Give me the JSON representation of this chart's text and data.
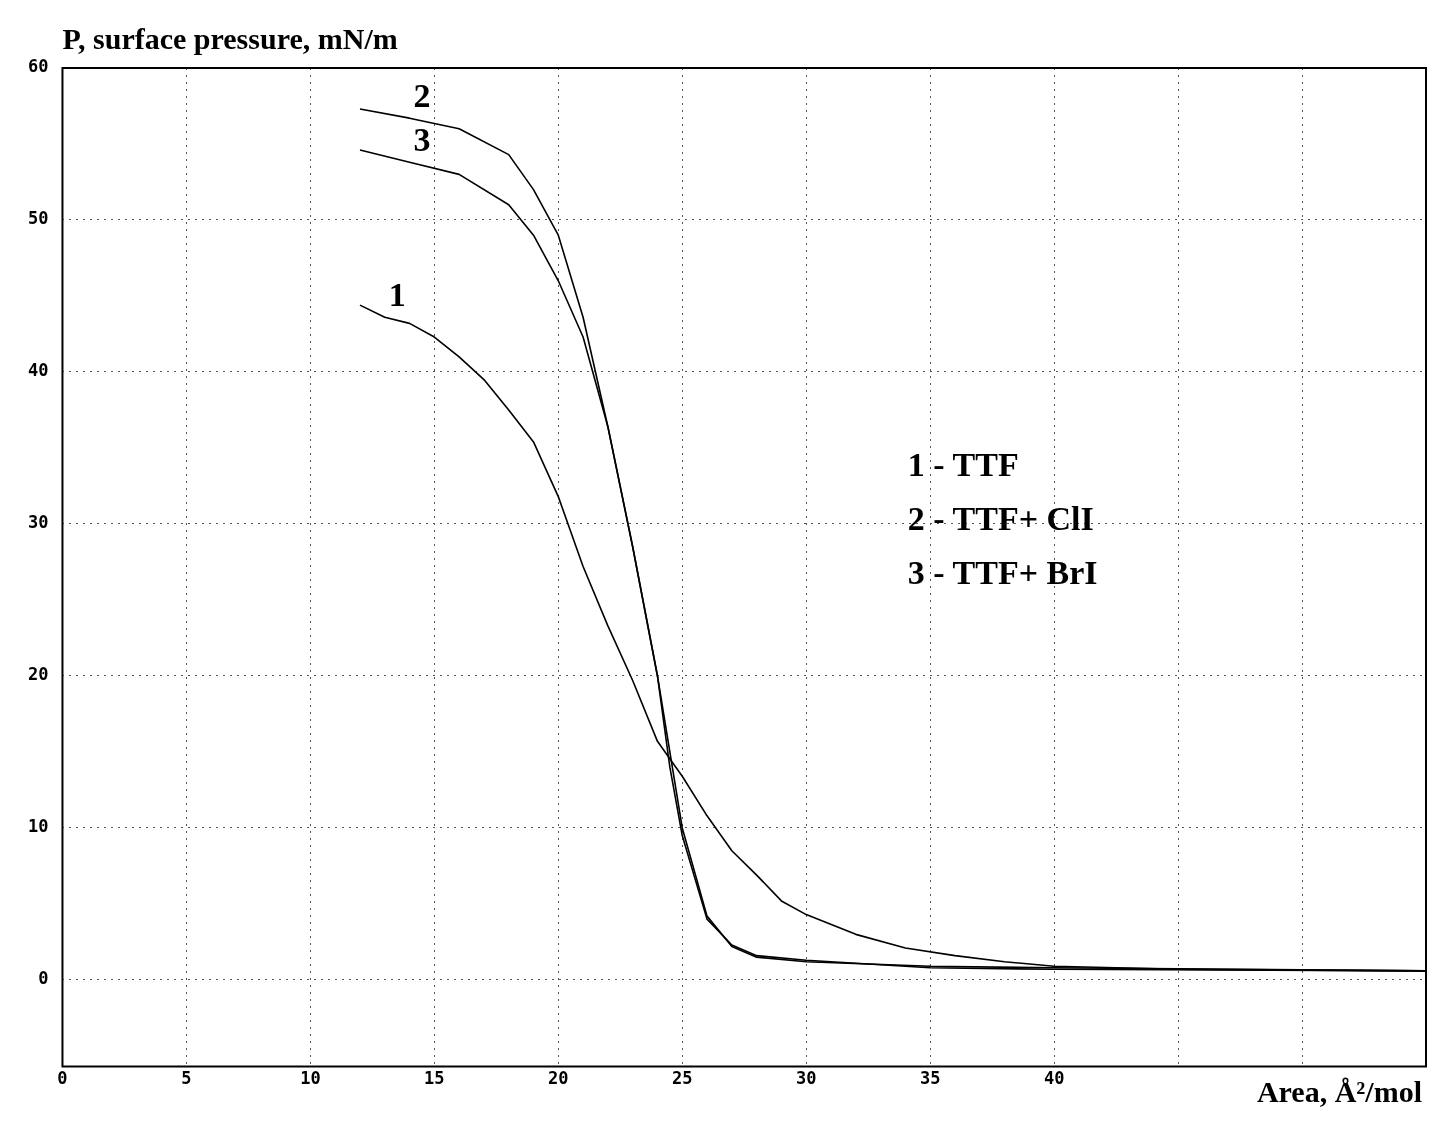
{
  "chart_data": {
    "type": "line",
    "ylabel": "P, surface pressure, mN/m",
    "xlabel": "Area, Å²/mol",
    "xlim": [
      0,
      55
    ],
    "xticks": [
      0,
      5,
      10,
      15,
      20,
      25,
      30,
      35,
      40,
      {
        "value": 45,
        "label": null
      },
      {
        "value": 50,
        "label": null
      }
    ],
    "ylim": [
      -5.7,
      60
    ],
    "yticks": [
      0,
      10,
      20,
      30,
      40,
      50,
      60
    ],
    "grid": true,
    "legend": false,
    "marker": "none",
    "line_style": "solid",
    "series": [
      {
        "name": "1",
        "color": "#000000",
        "x": [
          12,
          13,
          14,
          15,
          16,
          17,
          18,
          19,
          20,
          21,
          22,
          23,
          24,
          25,
          26,
          27,
          28,
          29,
          30,
          32,
          34,
          36,
          38,
          40,
          45,
          55
        ],
        "values": [
          44.4,
          43.6,
          43.2,
          42.3,
          41,
          39.5,
          37.5,
          35.4,
          31.8,
          27.2,
          23.3,
          19.7,
          15.7,
          13.4,
          10.8,
          8.5,
          6.9,
          5.2,
          4.3,
          3,
          2.1,
          1.6,
          1.2,
          0.9,
          0.7,
          0.6
        ]
      },
      {
        "name": "2",
        "color": "#000000",
        "x": [
          12,
          14,
          16,
          18,
          19,
          20,
          21,
          22,
          23,
          24,
          24.5,
          25,
          26,
          27,
          28,
          30,
          35,
          40,
          55
        ],
        "values": [
          57.3,
          56.7,
          56,
          54.3,
          52,
          49,
          43.6,
          36.4,
          28.5,
          20,
          14,
          9.5,
          4,
          2.3,
          1.6,
          1.3,
          0.8,
          0.7,
          0.6
        ]
      },
      {
        "name": "3",
        "color": "#000000",
        "x": [
          12,
          14,
          16,
          18,
          19,
          20,
          21,
          22,
          23,
          24,
          25,
          26,
          27,
          28,
          30,
          35,
          40,
          55
        ],
        "values": [
          54.6,
          53.8,
          53,
          51,
          49,
          46,
          42.3,
          36.4,
          28.5,
          20,
          10,
          4.2,
          2.2,
          1.5,
          1.2,
          0.9,
          0.8,
          0.6
        ]
      }
    ],
    "annotations": [
      "1 - TTF",
      "2 - TTF+ ClI",
      "3 - TTF+ BrI"
    ]
  }
}
